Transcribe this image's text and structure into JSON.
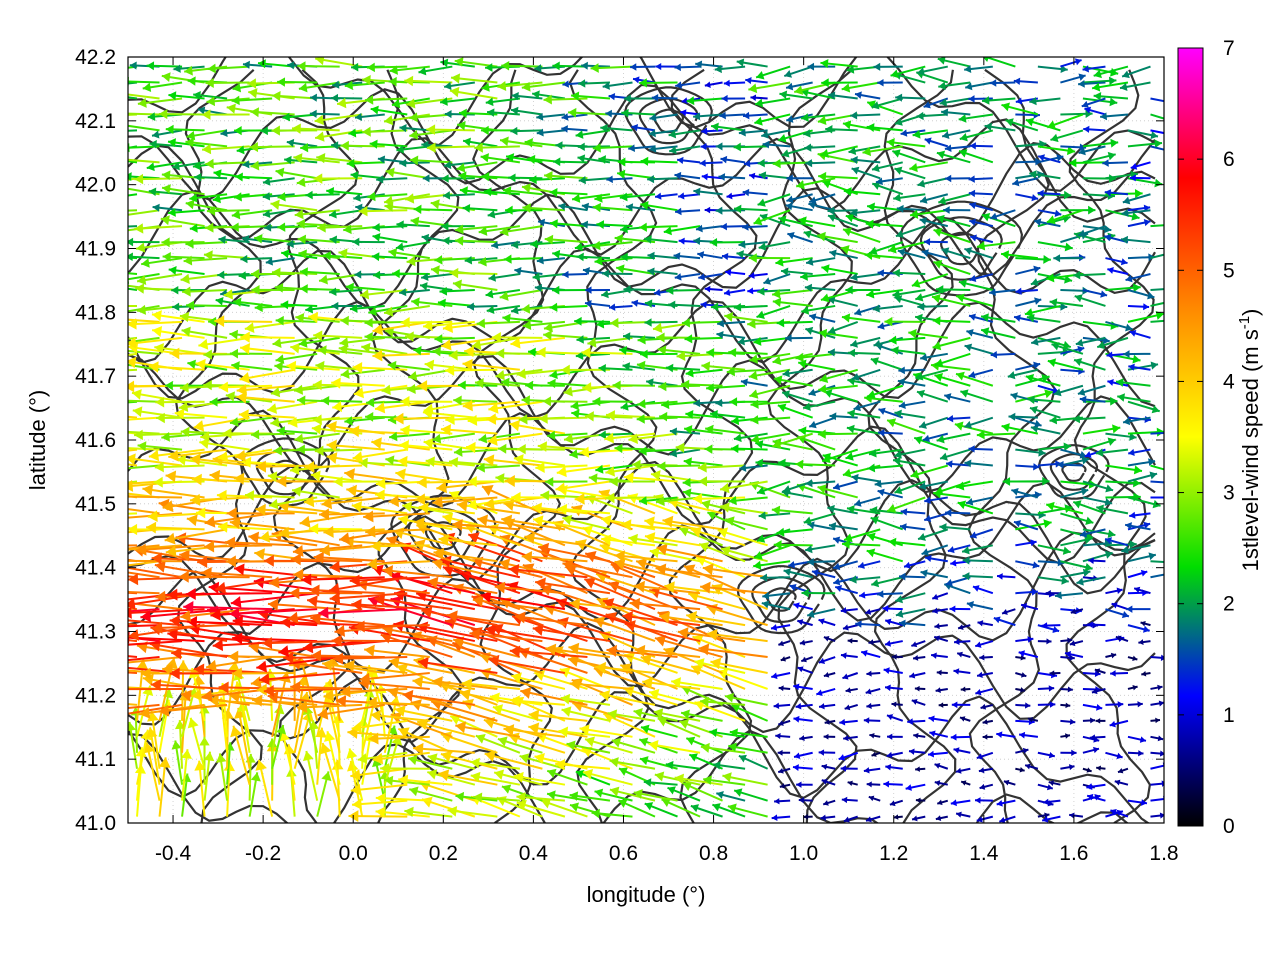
{
  "chart_data": {
    "type": "vector-field",
    "title": "",
    "xlabel": "longitude (°)",
    "ylabel": "latitude (°)",
    "xlim": [
      -0.5,
      1.8
    ],
    "ylim": [
      41.0,
      42.2
    ],
    "xticks": [
      -0.4,
      -0.2,
      0.0,
      0.2,
      0.4,
      0.6,
      0.8,
      1.0,
      1.2,
      1.4,
      1.6,
      1.8
    ],
    "xtick_labels": [
      "-0.4",
      "-0.2",
      "0.0",
      "0.2",
      "0.4",
      "0.6",
      "0.8",
      "1.0",
      "1.2",
      "1.4",
      "1.6",
      "1.8"
    ],
    "yticks": [
      41.0,
      41.1,
      41.2,
      41.3,
      41.4,
      41.5,
      41.6,
      41.7,
      41.8,
      41.9,
      42.0,
      42.1,
      42.2
    ],
    "ytick_labels": [
      "41.0",
      "41.1",
      "41.2",
      "41.3",
      "41.4",
      "41.5",
      "41.6",
      "41.7",
      "41.8",
      "41.9",
      "42.0",
      "42.1",
      "42.2"
    ],
    "grid": true,
    "colorbar": {
      "label": "1stlevel-wind speed (m s",
      "label_superscript": "-1",
      "label_close": ")",
      "range": [
        0,
        7
      ],
      "ticks": [
        0,
        1,
        2,
        3,
        4,
        5,
        6,
        7
      ],
      "tick_labels": [
        "0",
        "1",
        "2",
        "3",
        "4",
        "5",
        "6",
        "7"
      ],
      "colors": [
        "#000000",
        "#0000ff",
        "#00dd00",
        "#ffff00",
        "#ff8800",
        "#ff0000",
        "#ff00ff"
      ]
    },
    "contour_color": "#333333",
    "vectors_note_values": "grid of wind vectors; predominant easterly flow (pointing west) over the western half, speeds 3–7 m/s; weak, variable flow (0–2 m/s) over the eastern half",
    "vector_grid": {
      "dlon": 0.05,
      "dlat": 0.025
    }
  }
}
